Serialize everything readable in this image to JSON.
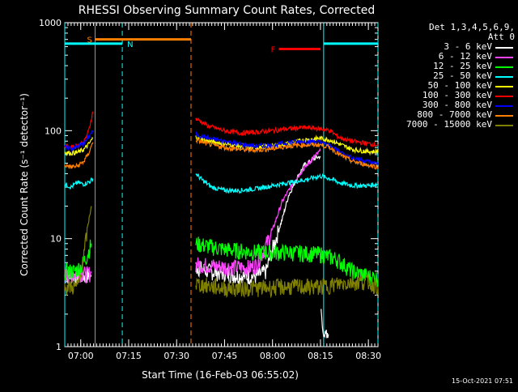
{
  "chart_data": {
    "type": "line",
    "title": "RHESSI Observing Summary Count Rates, Corrected",
    "xlabel": "Start Time (16-Feb-03 06:55:02)",
    "ylabel": "Corrected Count Rate (s⁻¹ detector⁻¹)",
    "yscale": "log",
    "ylim": [
      1,
      1000
    ],
    "xlim_minutes_after_0655": [
      0,
      98
    ],
    "x_ticks": [
      {
        "t": 5,
        "label": "07:00"
      },
      {
        "t": 20,
        "label": "07:15"
      },
      {
        "t": 35,
        "label": "07:30"
      },
      {
        "t": 50,
        "label": "07:45"
      },
      {
        "t": 65,
        "label": "08:00"
      },
      {
        "t": 80,
        "label": "08:15"
      },
      {
        "t": 95,
        "label": "08:30"
      }
    ],
    "y_ticks": [
      {
        "v": 1,
        "label": "1"
      },
      {
        "v": 10,
        "label": "10"
      },
      {
        "v": 100,
        "label": "100"
      },
      {
        "v": 1000,
        "label": "1000"
      }
    ],
    "legend_header": [
      "Det 1,3,4,5,6,9,",
      "Att 0"
    ],
    "series": [
      {
        "name": "3 - 6 keV",
        "color": "#ffffff",
        "segments": [
          {
            "x": [
              0,
              3,
              6.5,
              7,
              8.3
            ],
            "y": [
              4.5,
              4.6,
              4.5,
              4.6,
              4.6
            ]
          },
          {
            "x": [
              41,
              45,
              50,
              55,
              60,
              63,
              65,
              68,
              70,
              73,
              75,
              78,
              80
            ],
            "y": [
              5.5,
              5,
              4.8,
              4.5,
              4.5,
              5,
              8,
              15,
              25,
              38,
              48,
              55,
              58
            ]
          },
          {
            "x": [
              80.2,
              80.6,
              81,
              81.5,
              82,
              82.5
            ],
            "y": [
              2,
              1.5,
              1.2,
              1.6,
              1.1,
              1.3
            ]
          }
        ]
      },
      {
        "name": "6 - 12 keV",
        "color": "#ff44ff",
        "segments": [
          {
            "x": [
              0,
              4,
              7,
              8.3
            ],
            "y": [
              4.6,
              4.8,
              4.7,
              4.8
            ]
          },
          {
            "x": [
              41,
              50,
              58,
              60,
              62,
              65,
              68,
              72,
              75,
              78,
              80
            ],
            "y": [
              5.8,
              5.5,
              5.4,
              5.8,
              7.5,
              12,
              22,
              35,
              45,
              57,
              65
            ]
          }
        ]
      },
      {
        "name": "12 - 25 keV",
        "color": "#00ff00",
        "segments": [
          {
            "x": [
              0,
              3,
              5,
              7,
              8.3
            ],
            "y": [
              5,
              5,
              5.5,
              7,
              9
            ]
          },
          {
            "x": [
              41,
              50,
              60,
              70,
              80,
              85,
              90,
              95,
              98
            ],
            "y": [
              9,
              8,
              7.5,
              7.5,
              7.2,
              6.5,
              5,
              4.5,
              4.3
            ]
          }
        ]
      },
      {
        "name": "25 - 50 keV",
        "color": "#00ffff",
        "segments": [
          {
            "x": [
              0,
              2,
              4,
              6,
              8,
              8.8
            ],
            "y": [
              32,
              30,
              33,
              32,
              34,
              36
            ]
          },
          {
            "x": [
              41,
              43,
              46,
              50,
              55,
              60,
              65,
              70,
              75,
              80,
              83,
              86,
              90,
              95,
              98
            ],
            "y": [
              40,
              35,
              30,
              28,
              28,
              29,
              31,
              33,
              35,
              38,
              36,
              33,
              31,
              31,
              32
            ]
          }
        ]
      },
      {
        "name": "50 - 100 keV",
        "color": "#ffff00",
        "segments": [
          {
            "x": [
              0,
              2,
              4,
              6,
              7.5,
              8.8
            ],
            "y": [
              63,
              62,
              63,
              67,
              75,
              85
            ]
          },
          {
            "x": [
              41,
              45,
              50,
              55,
              60,
              65,
              70,
              75,
              80,
              83,
              86,
              90,
              95,
              98
            ],
            "y": [
              88,
              80,
              76,
              72,
              70,
              72,
              76,
              82,
              85,
              82,
              75,
              67,
              64,
              64
            ]
          }
        ]
      },
      {
        "name": "100 - 300 keV",
        "color": "#ff0000",
        "segments": [
          {
            "x": [
              0,
              2,
              4,
              6,
              7.5,
              8.8
            ],
            "y": [
              72,
              70,
              73,
              78,
              100,
              150
            ]
          },
          {
            "x": [
              41,
              45,
              50,
              55,
              60,
              65,
              70,
              75,
              80,
              83,
              86,
              90,
              95,
              98
            ],
            "y": [
              130,
              110,
              100,
              95,
              97,
              100,
              104,
              107,
              104,
              100,
              86,
              80,
              76,
              74
            ]
          }
        ]
      },
      {
        "name": "300 - 800 keV",
        "color": "#0000ff",
        "segments": [
          {
            "x": [
              0,
              2,
              4,
              6,
              8.8
            ],
            "y": [
              70,
              69,
              71,
              76,
              100
            ]
          },
          {
            "x": [
              41,
              45,
              50,
              55,
              60,
              65,
              70,
              75,
              80,
              83,
              86,
              90,
              95,
              98
            ],
            "y": [
              92,
              85,
              80,
              75,
              72,
              73,
              78,
              80,
              78,
              72,
              64,
              56,
              52,
              49
            ]
          }
        ]
      },
      {
        "name": "800 - 7000 keV",
        "color": "#ff8000",
        "segments": [
          {
            "x": [
              0,
              2,
              4,
              6,
              7.5,
              8.8
            ],
            "y": [
              48,
              46,
              47,
              52,
              62,
              78
            ]
          },
          {
            "x": [
              41,
              45,
              50,
              55,
              60,
              65,
              70,
              75,
              80,
              83,
              86,
              90,
              95,
              98
            ],
            "y": [
              82,
              75,
              70,
              67,
              66,
              68,
              72,
              74,
              74,
              70,
              60,
              52,
              48,
              46
            ]
          }
        ]
      },
      {
        "name": "7000 - 15000 keV",
        "color": "#808000",
        "segments": [
          {
            "x": [
              0,
              2,
              4,
              5,
              6,
              7,
              8.3
            ],
            "y": [
              3.5,
              3.6,
              3.6,
              4.5,
              7,
              12,
              20
            ]
          },
          {
            "x": [
              41,
              50,
              60,
              70,
              80,
              85,
              90,
              95,
              98
            ],
            "y": [
              3.8,
              3.5,
              3.5,
              3.6,
              3.6,
              3.8,
              4,
              4,
              3.6
            ]
          }
        ]
      }
    ],
    "annotation_bars": [
      {
        "label": "S",
        "color": "#ff8000",
        "t_start": 9.5,
        "t_end": 39.5,
        "v": 700
      },
      {
        "label": "N",
        "color": "#00ffff",
        "t_start": 0,
        "t_end": 18,
        "v": 640
      },
      {
        "label": "F",
        "color": "#ff0000",
        "t_start": 67,
        "t_end": 80,
        "v": 570
      },
      {
        "label": "",
        "color": "#00ffff",
        "t_start": 81,
        "t_end": 98,
        "v": 640
      }
    ],
    "vertical_markers": [
      {
        "t": 0,
        "color": "#00ffff",
        "style": "solid"
      },
      {
        "t": 9.5,
        "color": "#ff8000",
        "style": "solid"
      },
      {
        "t": 18,
        "color": "#00ffff",
        "style": "dash"
      },
      {
        "t": 39.5,
        "color": "#ff8000",
        "style": "dash"
      },
      {
        "t": 81,
        "color": "#00ffff",
        "style": "solid"
      },
      {
        "t": 98,
        "color": "#00ffff",
        "style": "dash"
      }
    ],
    "footer_stamp": "15-Oct-2021 07:51"
  }
}
